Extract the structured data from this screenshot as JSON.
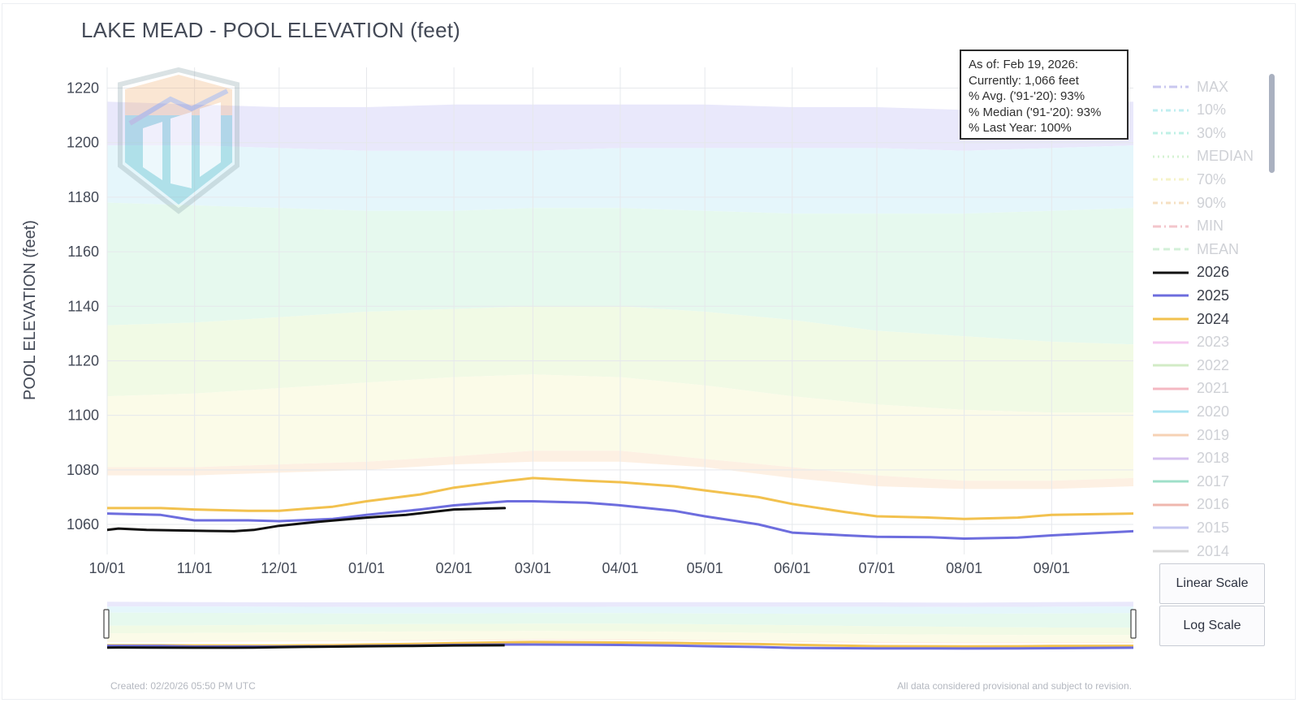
{
  "title": "LAKE MEAD - POOL ELEVATION (feet)",
  "info_box": [
    "As of: Feb 19, 2026:",
    "Currently: 1,066 feet",
    "% Avg. ('91-'20): 93%",
    "% Median ('91-'20): 93%",
    "% Last Year: 100%"
  ],
  "legend": [
    {
      "label": "MAX",
      "color": "#c9c7ef",
      "dash": "10 4 2 4",
      "active": false
    },
    {
      "label": "10%",
      "color": "#bfeef0",
      "dash": "6 4 2 4",
      "active": false
    },
    {
      "label": "30%",
      "color": "#bff0e6",
      "dash": "6 4 2 4",
      "active": false
    },
    {
      "label": "MEDIAN",
      "color": "#d4f2d2",
      "dash": "2 4",
      "active": false
    },
    {
      "label": "70%",
      "color": "#f6f3c8",
      "dash": "6 4 2 4",
      "active": false
    },
    {
      "label": "90%",
      "color": "#f6e0c2",
      "dash": "6 4 2 4",
      "active": false
    },
    {
      "label": "MIN",
      "color": "#f3c6cc",
      "dash": "10 4 2 4",
      "active": false
    },
    {
      "label": "MEAN",
      "color": "#d3f0d8",
      "dash": "8 5",
      "active": false
    },
    {
      "label": "2026",
      "color": "#111111",
      "dash": "",
      "active": true
    },
    {
      "label": "2025",
      "color": "#6d6dde",
      "dash": "",
      "active": true
    },
    {
      "label": "2024",
      "color": "#f2c14e",
      "dash": "",
      "active": true
    },
    {
      "label": "2023",
      "color": "#f6c9ef",
      "dash": "",
      "active": false
    },
    {
      "label": "2022",
      "color": "#d2ebc6",
      "dash": "",
      "active": false
    },
    {
      "label": "2021",
      "color": "#f4b8c2",
      "dash": "",
      "active": false
    },
    {
      "label": "2020",
      "color": "#a9e4f2",
      "dash": "",
      "active": false
    },
    {
      "label": "2019",
      "color": "#f6d2b4",
      "dash": "",
      "active": false
    },
    {
      "label": "2018",
      "color": "#d5c0ef",
      "dash": "",
      "active": false
    },
    {
      "label": "2017",
      "color": "#9fe0c9",
      "dash": "",
      "active": false
    },
    {
      "label": "2016",
      "color": "#efb7ae",
      "dash": "",
      "active": false
    },
    {
      "label": "2015",
      "color": "#c4c6f0",
      "dash": "",
      "active": false
    },
    {
      "label": "2014",
      "color": "#d9d9d9",
      "dash": "",
      "active": false
    }
  ],
  "buttons": {
    "linear": "Linear Scale",
    "log": "Log Scale"
  },
  "footer": {
    "created": "Created: 02/20/26 05:50 PM UTC",
    "disclaimer": "All data considered provisional and subject to revision."
  },
  "chart_data": {
    "type": "line",
    "title": "LAKE MEAD - POOL ELEVATION (feet)",
    "ylabel": "POOL ELEVATION (feet)",
    "xlabel": "",
    "xlim": [
      "10/01",
      "09/30"
    ],
    "ylim": [
      1049,
      1227
    ],
    "x_ticks": [
      "10/01",
      "11/01",
      "12/01",
      "01/01",
      "02/01",
      "03/01",
      "04/01",
      "05/01",
      "06/01",
      "07/01",
      "08/01",
      "09/01"
    ],
    "y_ticks": [
      1060,
      1080,
      1100,
      1120,
      1140,
      1160,
      1180,
      1200,
      1220
    ],
    "grid": true,
    "legend_position": "right",
    "bands": [
      {
        "from": "MAX",
        "to": "10%",
        "color": "#e9e8fb",
        "upper": [
          1215,
          1214,
          1213,
          1213,
          1214,
          1214,
          1214,
          1214,
          1213,
          1213,
          1212,
          1214,
          1215
        ],
        "lower": [
          1199,
          1199,
          1198,
          1197,
          1197,
          1197,
          1198,
          1198,
          1198,
          1198,
          1197,
          1198,
          1199
        ]
      },
      {
        "from": "10%",
        "to": "30%",
        "color": "#e5f6fb",
        "upper": [
          1199,
          1199,
          1198,
          1197,
          1197,
          1197,
          1198,
          1198,
          1198,
          1198,
          1197,
          1198,
          1199
        ],
        "lower": [
          1178,
          1177,
          1176,
          1175,
          1175,
          1176,
          1176,
          1175,
          1174,
          1174,
          1174,
          1175,
          1176
        ]
      },
      {
        "from": "30%",
        "to": "MEDIAN",
        "color": "#e6f9ee",
        "upper": [
          1178,
          1177,
          1176,
          1175,
          1175,
          1176,
          1176,
          1175,
          1174,
          1174,
          1174,
          1175,
          1176
        ],
        "lower": [
          1133,
          1134,
          1136,
          1138,
          1139,
          1140,
          1140,
          1138,
          1135,
          1131,
          1129,
          1127,
          1126
        ]
      },
      {
        "from": "MEDIAN",
        "to": "70%",
        "color": "#f1fae5",
        "upper": [
          1133,
          1134,
          1136,
          1138,
          1139,
          1140,
          1140,
          1138,
          1135,
          1131,
          1129,
          1127,
          1126
        ],
        "lower": [
          1107,
          1108,
          1110,
          1112,
          1114,
          1115,
          1114,
          1111,
          1107,
          1104,
          1102,
          1101,
          1101
        ]
      },
      {
        "from": "70%",
        "to": "90%",
        "color": "#fbfbe8",
        "upper": [
          1107,
          1108,
          1110,
          1112,
          1114,
          1115,
          1114,
          1111,
          1107,
          1104,
          1102,
          1101,
          1101
        ],
        "lower": [
          1081,
          1081,
          1082,
          1083,
          1085,
          1087,
          1087,
          1084,
          1081,
          1078,
          1076,
          1076,
          1077
        ]
      },
      {
        "from": "90%",
        "to": "MIN",
        "color": "#fdf0e3",
        "upper": [
          1081,
          1081,
          1082,
          1083,
          1085,
          1087,
          1087,
          1084,
          1081,
          1078,
          1076,
          1076,
          1077
        ],
        "lower": [
          1078,
          1078,
          1079,
          1080,
          1082,
          1083,
          1083,
          1081,
          1077,
          1074,
          1073,
          1073,
          1074
        ]
      }
    ],
    "band_x": [
      "10/01",
      "11/01",
      "12/01",
      "01/01",
      "02/01",
      "03/01",
      "04/01",
      "05/01",
      "06/01",
      "07/01",
      "08/01",
      "09/01",
      "09/30"
    ],
    "series": [
      {
        "name": "2026",
        "color": "#111111",
        "x": [
          "10/01",
          "10/05",
          "10/15",
          "11/01",
          "11/15",
          "11/22",
          "12/01",
          "12/15",
          "01/01",
          "01/15",
          "02/01",
          "02/19"
        ],
        "y": [
          1058,
          1058.5,
          1058,
          1057.7,
          1057.5,
          1058,
          1059.5,
          1061,
          1062.5,
          1063.5,
          1065.5,
          1066
        ]
      },
      {
        "name": "2025",
        "color": "#6d6dde",
        "x": [
          "10/01",
          "10/20",
          "11/01",
          "11/20",
          "12/01",
          "12/20",
          "01/01",
          "01/20",
          "02/01",
          "02/20",
          "03/01",
          "03/20",
          "04/01",
          "04/20",
          "05/01",
          "05/20",
          "06/01",
          "06/20",
          "07/01",
          "07/20",
          "08/01",
          "08/20",
          "09/01",
          "09/30"
        ],
        "y": [
          1064,
          1063.5,
          1061.5,
          1061.5,
          1061.2,
          1062,
          1063.5,
          1065.5,
          1067,
          1068.5,
          1068.5,
          1068,
          1067,
          1065,
          1063,
          1060,
          1057,
          1056,
          1055.5,
          1055.3,
          1054.8,
          1055.2,
          1056,
          1057.5
        ]
      },
      {
        "name": "2024",
        "color": "#f2c14e",
        "x": [
          "10/01",
          "10/20",
          "11/01",
          "11/20",
          "12/01",
          "12/20",
          "01/01",
          "01/20",
          "02/01",
          "02/20",
          "03/01",
          "03/20",
          "04/01",
          "04/20",
          "05/01",
          "05/20",
          "06/01",
          "06/20",
          "07/01",
          "07/20",
          "08/01",
          "08/20",
          "09/01",
          "09/30"
        ],
        "y": [
          1066,
          1066,
          1065.5,
          1065,
          1065,
          1066.5,
          1068.5,
          1071,
          1073.5,
          1076,
          1077,
          1076,
          1075.5,
          1074,
          1072.5,
          1070,
          1067.5,
          1064.5,
          1063,
          1062.5,
          1062,
          1062.5,
          1063.5,
          1064
        ]
      }
    ]
  }
}
